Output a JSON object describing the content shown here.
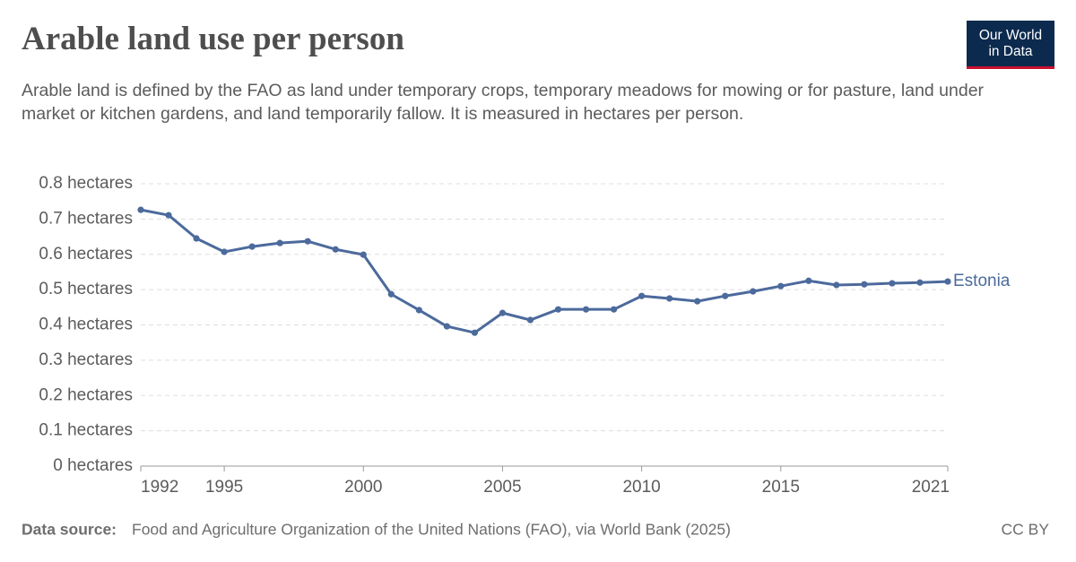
{
  "chart_data": {
    "type": "line",
    "title": "Arable land use per person",
    "subtitle": "Arable land is defined by the FAO as land under temporary crops, temporary meadows for mowing or for pasture, land under market or kitchen gardens, and land temporarily fallow. It is measured in hectares per person.",
    "logo": [
      "Our World",
      "in Data"
    ],
    "source_label": "Data source:",
    "source": "Food and Agriculture Organization of the United Nations (FAO), via World Bank (2025)",
    "license": "CC BY",
    "x": [
      1992,
      1993,
      1994,
      1995,
      1996,
      1997,
      1998,
      1999,
      2000,
      2001,
      2002,
      2003,
      2004,
      2005,
      2006,
      2007,
      2008,
      2009,
      2010,
      2011,
      2012,
      2013,
      2014,
      2015,
      2016,
      2017,
      2018,
      2019,
      2020,
      2021
    ],
    "series": [
      {
        "name": "Estonia",
        "color": "#4c6a9c",
        "values": [
          0.726,
          0.711,
          0.645,
          0.607,
          0.622,
          0.632,
          0.637,
          0.614,
          0.599,
          0.487,
          0.442,
          0.396,
          0.378,
          0.434,
          0.414,
          0.444,
          0.444,
          0.444,
          0.482,
          0.475,
          0.467,
          0.482,
          0.495,
          0.51,
          0.525,
          0.513,
          0.515,
          0.518,
          0.52,
          0.523
        ]
      }
    ],
    "xlim": [
      1992,
      2021
    ],
    "xticks": [
      1992,
      1995,
      2000,
      2005,
      2010,
      2015,
      2021
    ],
    "ylim": [
      0,
      0.8
    ],
    "yticks": [
      {
        "value": 0,
        "label": "0 hectares"
      },
      {
        "value": 0.1,
        "label": "0.1 hectares"
      },
      {
        "value": 0.2,
        "label": "0.2 hectares"
      },
      {
        "value": 0.3,
        "label": "0.3 hectares"
      },
      {
        "value": 0.4,
        "label": "0.4 hectares"
      },
      {
        "value": 0.5,
        "label": "0.5 hectares"
      },
      {
        "value": 0.6,
        "label": "0.6 hectares"
      },
      {
        "value": 0.7,
        "label": "0.7 hectares"
      },
      {
        "value": 0.8,
        "label": "0.8 hectares"
      }
    ],
    "grid": true
  }
}
